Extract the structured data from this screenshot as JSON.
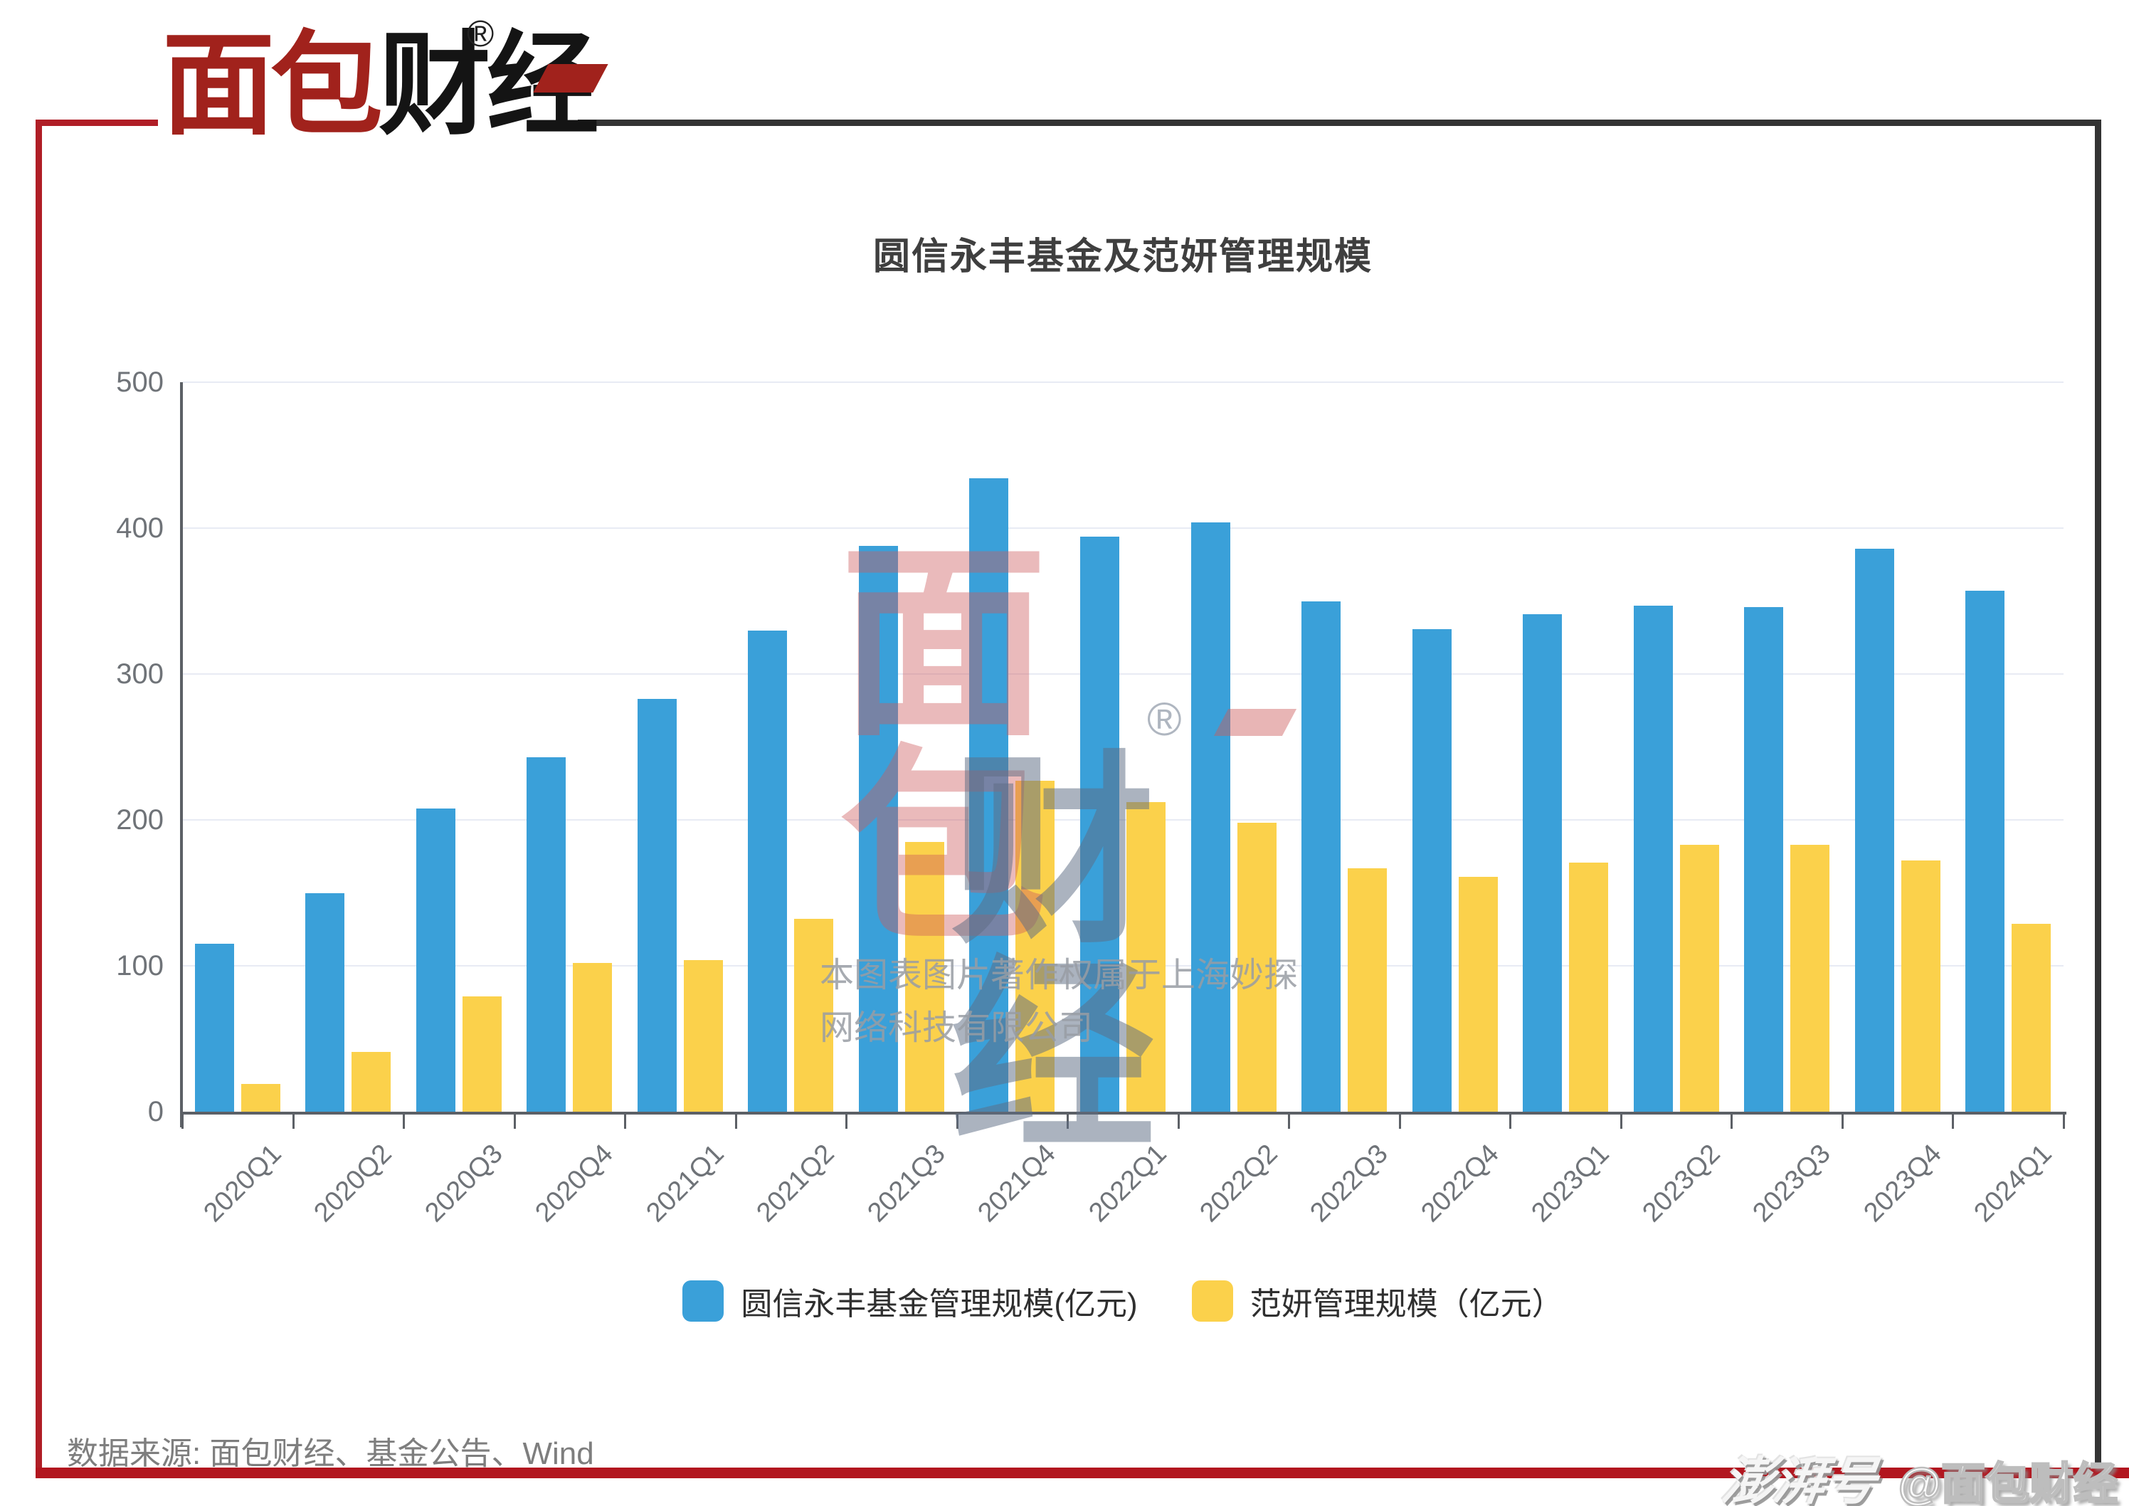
{
  "brand": {
    "logo_red": "面包",
    "logo_black": "财经",
    "registered_mark": "®"
  },
  "chart_data": {
    "type": "bar",
    "title": "圆信永丰基金及范妍管理规模",
    "categories": [
      "2020Q1",
      "2020Q2",
      "2020Q3",
      "2020Q4",
      "2021Q1",
      "2021Q2",
      "2021Q3",
      "2021Q4",
      "2022Q1",
      "2022Q2",
      "2022Q3",
      "2022Q4",
      "2023Q1",
      "2023Q2",
      "2023Q3",
      "2023Q4",
      "2024Q1"
    ],
    "series": [
      {
        "name": "圆信永丰基金管理规模(亿元)",
        "color": "#3aa0d9",
        "values": [
          115,
          150,
          208,
          243,
          283,
          330,
          388,
          434,
          394,
          404,
          350,
          331,
          341,
          347,
          346,
          386,
          357
        ]
      },
      {
        "name": "范妍管理规模（亿元）",
        "color": "#fbd14b",
        "values": [
          19,
          41,
          79,
          102,
          104,
          132,
          185,
          227,
          212,
          198,
          167,
          161,
          171,
          183,
          183,
          172,
          129
        ]
      }
    ],
    "ylim": [
      0,
      500
    ],
    "yticks": [
      0,
      100,
      200,
      300,
      400,
      500
    ],
    "grid": true,
    "legend_position": "bottom",
    "x_label_rotation": -45
  },
  "watermark": {
    "char_top": "面",
    "char_bottom": "包",
    "chars_right": "财经",
    "registered_mark": "®",
    "copyright_line1": "本图表图片著作权属于上海妙探",
    "copyright_line2": "网络科技有限公司"
  },
  "footer": {
    "source_note": "数据来源: 面包财经、基金公告、Wind",
    "platform_logo": "澎湃号",
    "account_handle": "@面包财经"
  },
  "colors": {
    "bar_blue": "#3aa0d9",
    "bar_yellow": "#fbd14b",
    "frame_red": "#b01e26",
    "bottom_bar_red": "#b2161f",
    "frame_dark": "#333333",
    "axis": "#5c6066",
    "gridline": "#e8ebf4",
    "title_text": "#3f3f3f",
    "tick_text": "#6f7378"
  }
}
